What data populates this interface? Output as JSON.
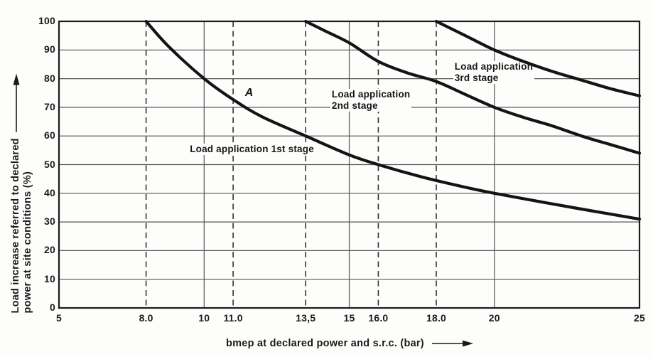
{
  "figure": {
    "bg": "#fdfdfc",
    "ink": "#1b1b1b",
    "grid_color": "#555555",
    "dash_color": "#333333",
    "curve_color": "#141414"
  },
  "chart_data": {
    "type": "line",
    "title": "",
    "xlabel": "bmep at declared power and s.r.c. (bar)",
    "ylabel_line1": "Load increase referred to declared",
    "ylabel_line2": "power at site conditions (%)",
    "xlim": [
      5,
      25
    ],
    "ylim": [
      0,
      100
    ],
    "grid": "on",
    "legend_position": "inline-labels",
    "x_ticks": [
      {
        "value": 5,
        "label": "5",
        "line": "axis"
      },
      {
        "value": 8,
        "label": "8.0",
        "line": "dashed"
      },
      {
        "value": 10,
        "label": "10",
        "line": "solid"
      },
      {
        "value": 11,
        "label": "11.0",
        "line": "dashed"
      },
      {
        "value": 13.5,
        "label": "13,5",
        "line": "dashed"
      },
      {
        "value": 15,
        "label": "15",
        "line": "solid"
      },
      {
        "value": 16,
        "label": "16.0",
        "line": "dashed"
      },
      {
        "value": 18,
        "label": "18.0",
        "line": "dashed"
      },
      {
        "value": 20,
        "label": "20",
        "line": "solid"
      },
      {
        "value": 25,
        "label": "25",
        "line": "axis"
      }
    ],
    "y_ticks": [
      {
        "value": 0,
        "label": "0"
      },
      {
        "value": 10,
        "label": "10"
      },
      {
        "value": 20,
        "label": "20"
      },
      {
        "value": 30,
        "label": "30"
      },
      {
        "value": 40,
        "label": "40"
      },
      {
        "value": 50,
        "label": "50"
      },
      {
        "value": 60,
        "label": "60"
      },
      {
        "value": 70,
        "label": "70"
      },
      {
        "value": 80,
        "label": "80"
      },
      {
        "value": 90,
        "label": "90"
      },
      {
        "value": 100,
        "label": "100"
      }
    ],
    "series": [
      {
        "name": "Load application 1st stage",
        "points": [
          [
            8,
            100
          ],
          [
            8.8,
            91
          ],
          [
            10,
            80
          ],
          [
            11,
            72.7
          ],
          [
            12,
            66.7
          ],
          [
            13.5,
            60
          ],
          [
            15,
            53.4
          ],
          [
            16,
            50
          ],
          [
            17.5,
            45.7
          ],
          [
            19,
            42.1
          ],
          [
            20,
            40
          ],
          [
            21.5,
            37.2
          ],
          [
            23,
            34.5
          ],
          [
            25,
            31
          ]
        ]
      },
      {
        "name": "Load application 2nd stage",
        "points": [
          [
            13.5,
            100
          ],
          [
            14.2,
            96.5
          ],
          [
            15,
            92.5
          ],
          [
            16,
            86
          ],
          [
            17,
            82
          ],
          [
            18,
            79
          ],
          [
            19,
            74.5
          ],
          [
            20,
            70
          ],
          [
            21,
            66.5
          ],
          [
            22,
            63.5
          ],
          [
            23,
            60
          ],
          [
            24,
            57
          ],
          [
            25,
            54
          ]
        ]
      },
      {
        "name": "Load application 3rd stage",
        "points": [
          [
            18,
            100
          ],
          [
            19,
            95
          ],
          [
            20,
            90
          ],
          [
            21,
            86
          ],
          [
            22,
            82.5
          ],
          [
            23,
            79.5
          ],
          [
            24,
            76.5
          ],
          [
            25,
            74
          ]
        ]
      }
    ],
    "annotations": [
      {
        "id": "point-a-label",
        "lines": [
          "A"
        ],
        "style": "point",
        "x": 11.36,
        "y": 77.2
      },
      {
        "id": "label-1st-stage",
        "lines": [
          "Load application 1st stage"
        ],
        "style": "label",
        "x": 9.46,
        "y": 57.3
      },
      {
        "id": "label-2nd-stage",
        "lines": [
          "Load application",
          "2nd stage"
        ],
        "style": "label",
        "x": 14.35,
        "y": 76.5
      },
      {
        "id": "label-3rd-stage",
        "lines": [
          "Load application",
          "3rd stage"
        ],
        "style": "label",
        "x": 18.58,
        "y": 86.0
      }
    ]
  }
}
